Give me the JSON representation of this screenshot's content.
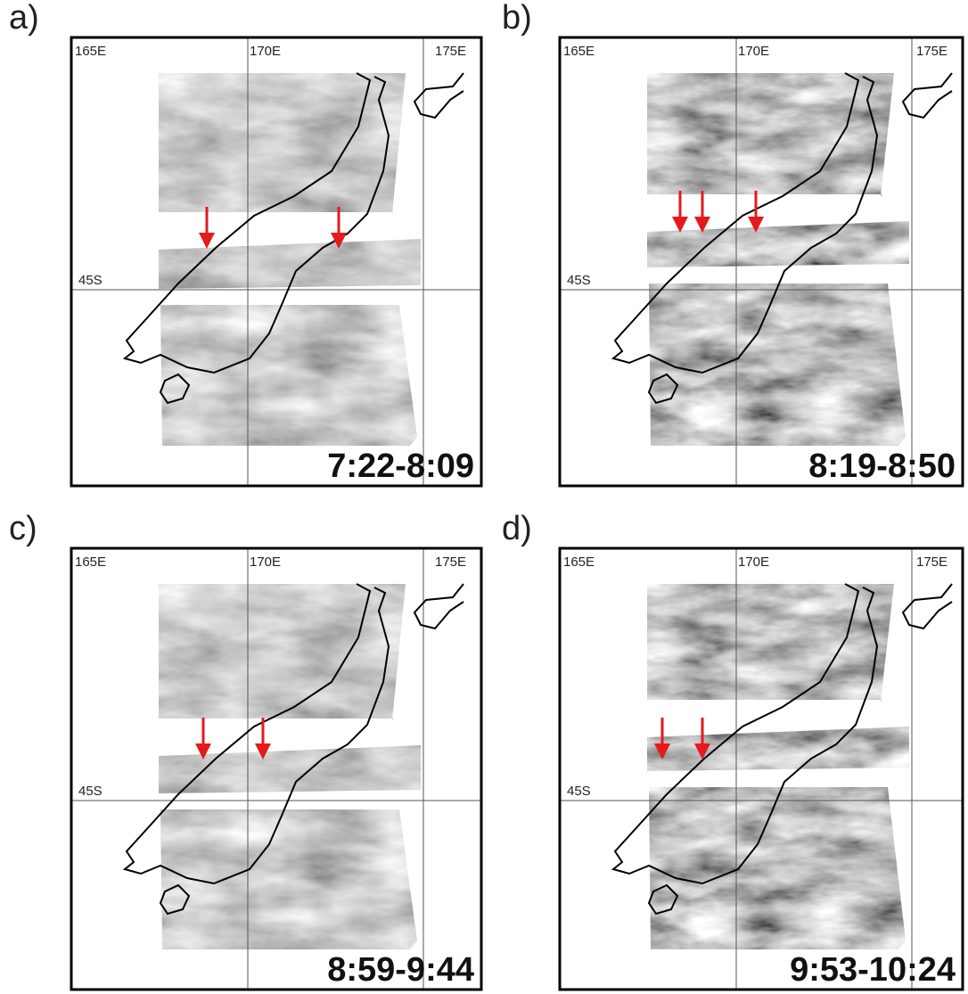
{
  "panels": [
    {
      "label": "a)",
      "lon_labels": [
        "165E",
        "170E",
        "175E"
      ],
      "lat_label": "45S",
      "time": "7:22-8:09"
    },
    {
      "label": "b)",
      "lon_labels": [
        "165E",
        "170E",
        "175E"
      ],
      "lat_label": "45S",
      "time": "8:19-8:50"
    },
    {
      "label": "c)",
      "lon_labels": [
        "165E",
        "170E",
        "175E"
      ],
      "lat_label": "45S",
      "time": "8:59-9:44"
    },
    {
      "label": "d)",
      "lon_labels": [
        "165E",
        "170E",
        "175E"
      ],
      "lat_label": "45S",
      "time": "9:53-10:24"
    }
  ]
}
